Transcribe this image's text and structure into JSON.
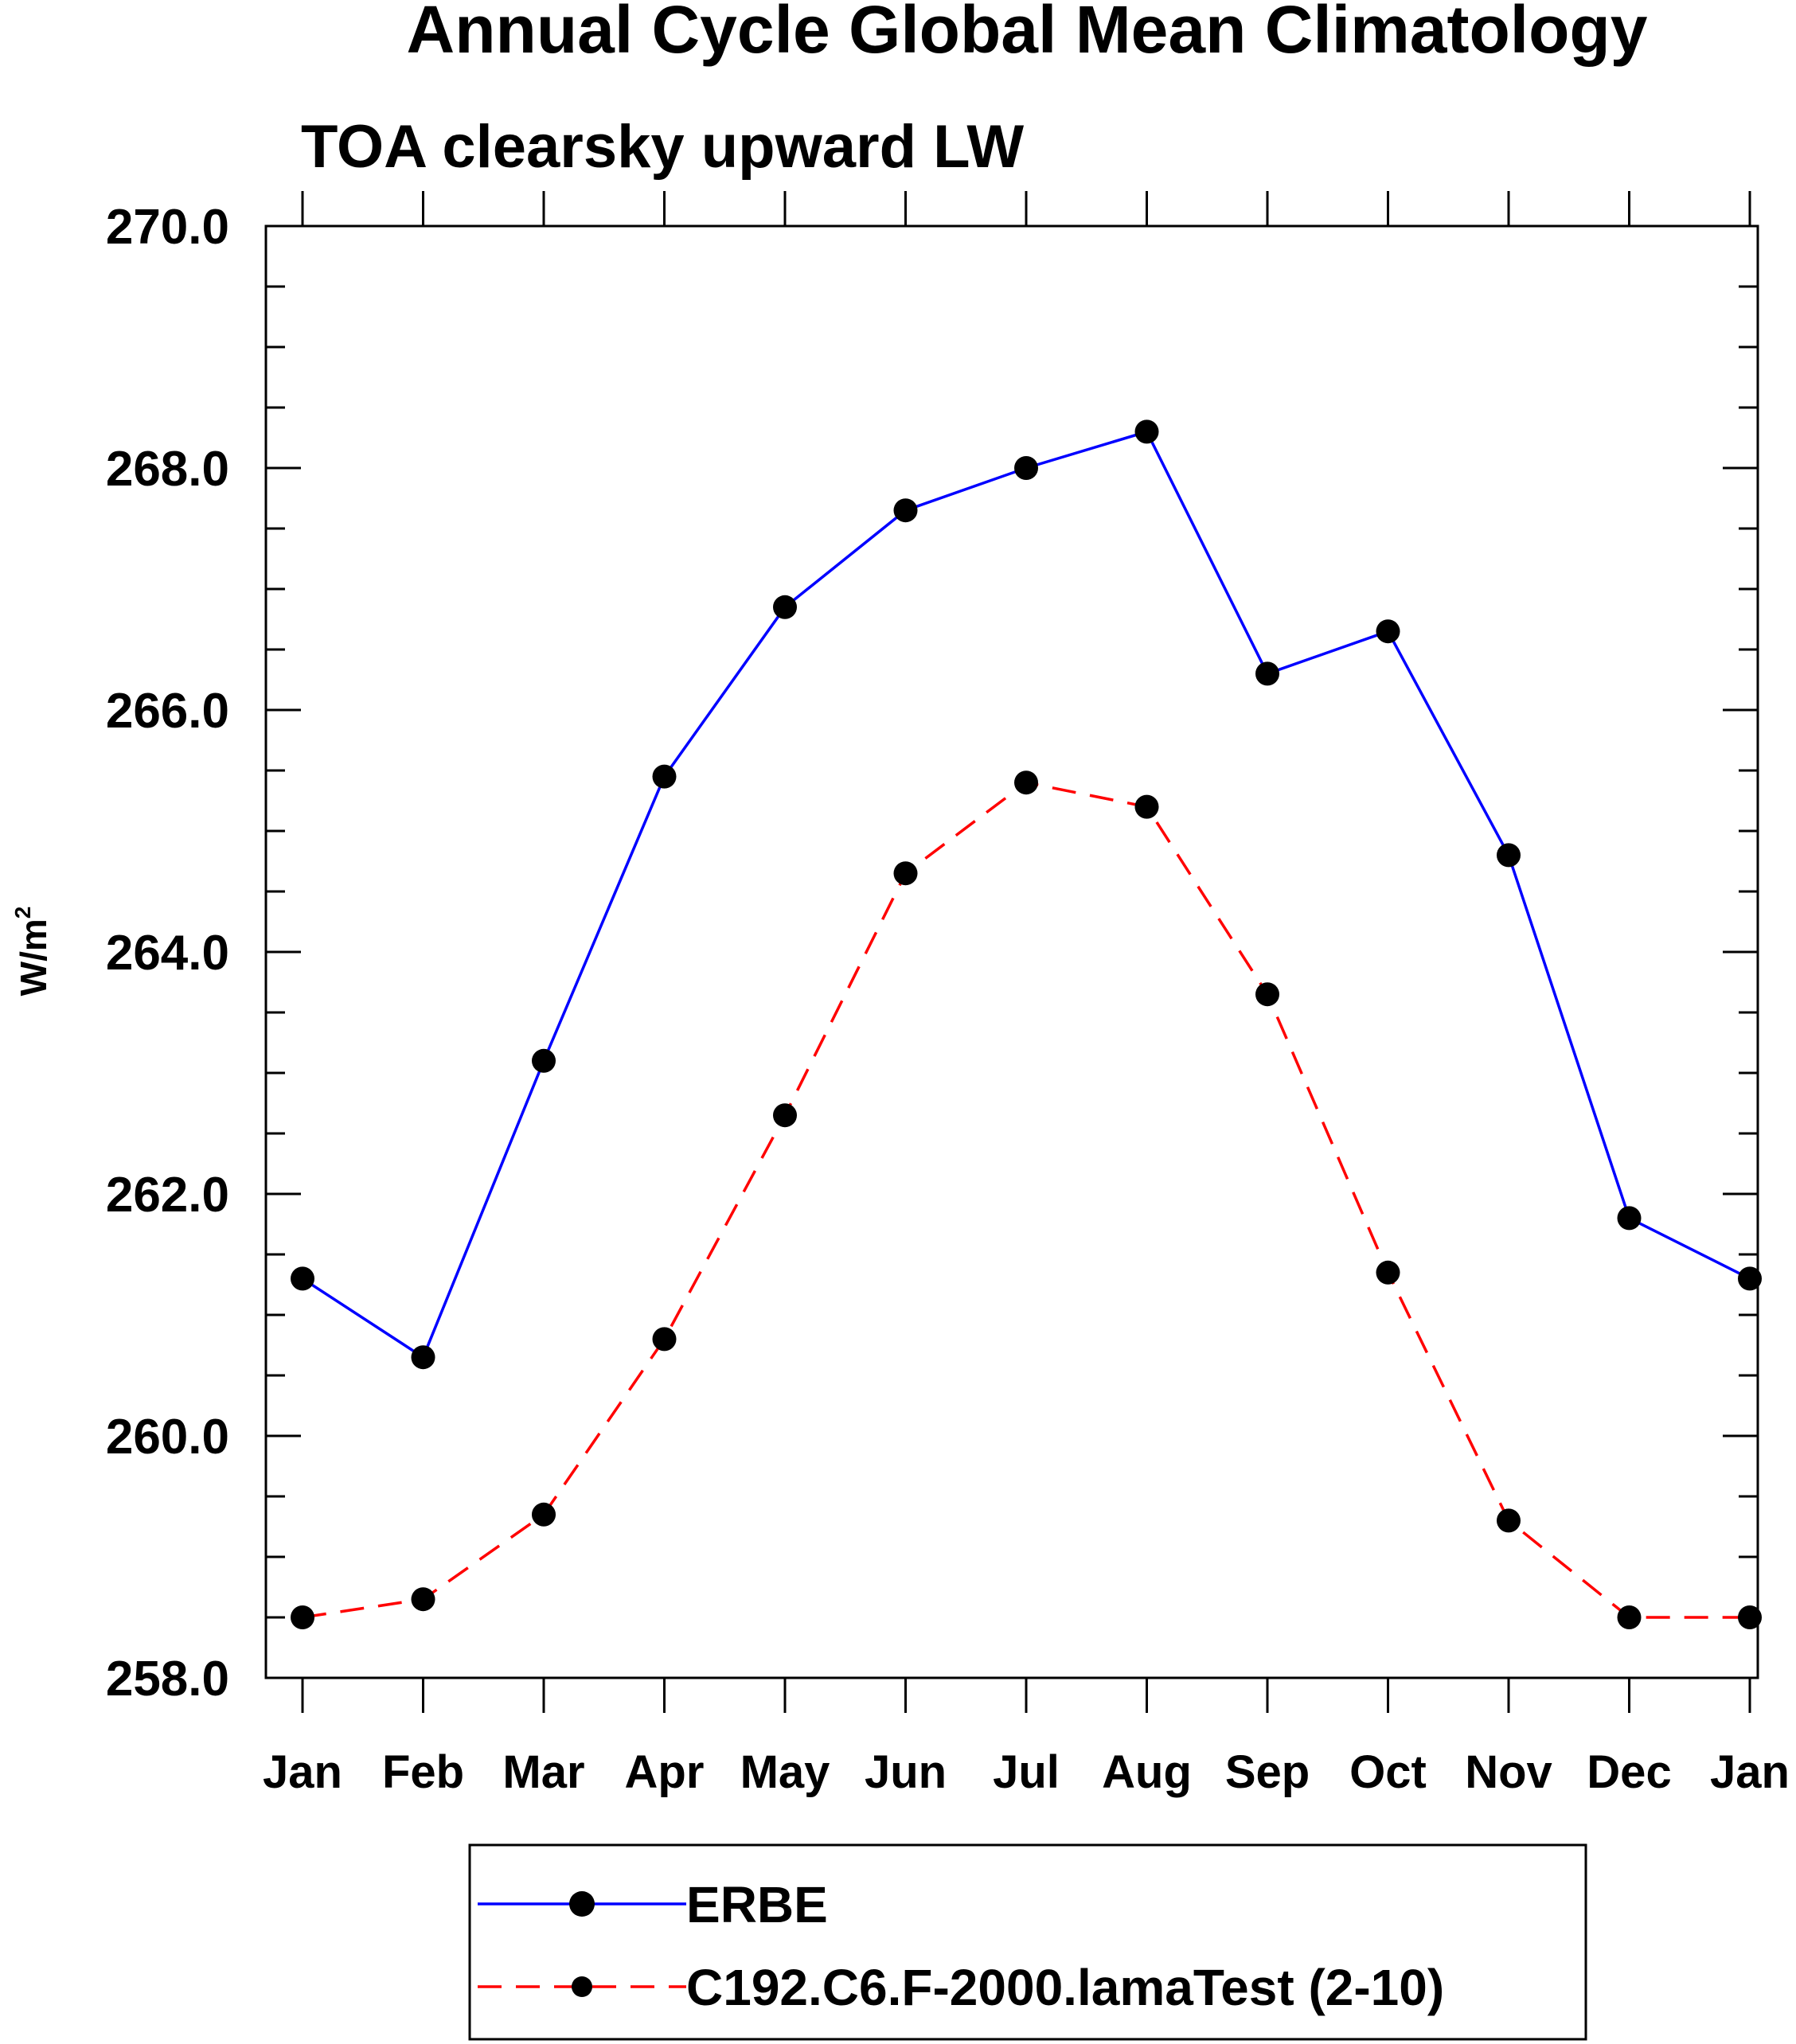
{
  "chart_data": {
    "type": "line",
    "title": "Annual Cycle Global Mean Climatology",
    "subtitle": "TOA clearsky upward LW",
    "xlabel": "",
    "ylabel_base": "W/m",
    "ylabel_superscript": "2",
    "categories": [
      "Jan",
      "Feb",
      "Mar",
      "Apr",
      "May",
      "Jun",
      "Jul",
      "Aug",
      "Sep",
      "Oct",
      "Nov",
      "Dec",
      "Jan"
    ],
    "ylim": [
      258.0,
      270.0
    ],
    "yticks_major": [
      258.0,
      260.0,
      262.0,
      264.0,
      266.0,
      268.0,
      270.0
    ],
    "ytick_labels": [
      "258.0",
      "260.0",
      "262.0",
      "264.0",
      "266.0",
      "268.0",
      "270.0"
    ],
    "yticks_minor_step": 0.5,
    "grid": false,
    "legend_position": "bottom-center",
    "series": [
      {
        "name": "ERBE",
        "color": "#0000ff",
        "line_style": "solid",
        "marker": "filled-circle",
        "marker_color": "#000000",
        "values": [
          261.3,
          260.65,
          263.1,
          265.45,
          266.85,
          267.65,
          268.0,
          268.3,
          266.3,
          266.65,
          264.8,
          261.8,
          261.3
        ]
      },
      {
        "name": "C192.C6.F-2000.lamaTest (2-10)",
        "color": "#ff0000",
        "line_style": "dashed",
        "marker": "filled-circle",
        "marker_color": "#000000",
        "values": [
          258.5,
          258.65,
          259.35,
          260.8,
          262.65,
          264.65,
          265.4,
          265.2,
          263.65,
          261.35,
          259.3,
          258.5,
          258.5
        ]
      }
    ]
  }
}
